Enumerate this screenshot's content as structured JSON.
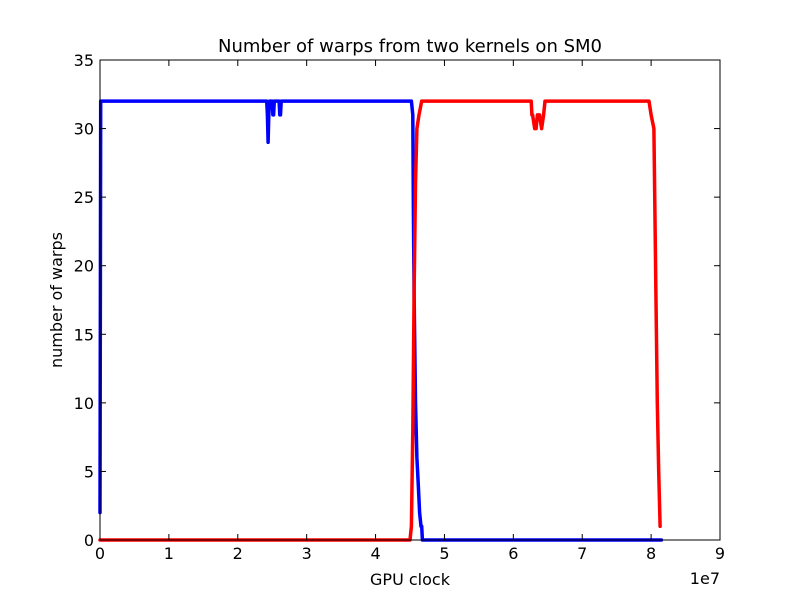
{
  "chart_data": {
    "type": "line",
    "title": "Number of warps from two kernels on SM0",
    "xlabel": "GPU clock",
    "ylabel": "number of warps",
    "x_offset_text": "1e7",
    "xlim": [
      0,
      90000000
    ],
    "ylim": [
      0,
      35
    ],
    "x_ticks": [
      0,
      10000000,
      20000000,
      30000000,
      40000000,
      50000000,
      60000000,
      70000000,
      80000000,
      90000000
    ],
    "x_tick_labels": [
      "0",
      "1",
      "2",
      "3",
      "4",
      "5",
      "6",
      "7",
      "8",
      "9"
    ],
    "y_ticks": [
      0,
      5,
      10,
      15,
      20,
      25,
      30,
      35
    ],
    "y_tick_labels": [
      "0",
      "5",
      "10",
      "15",
      "20",
      "25",
      "30",
      "35"
    ],
    "grid": false,
    "legend": "none",
    "series": [
      {
        "color": "#0000ff",
        "x": [
          0,
          100000,
          300000,
          24200000,
          24300000,
          24400000,
          24500000,
          24600000,
          24800000,
          25000000,
          25100000,
          25200000,
          25300000,
          25400000,
          26000000,
          26100000,
          26200000,
          26300000,
          26400000,
          45200000,
          45400000,
          45500000,
          45600000,
          45700000,
          45800000,
          46000000,
          46200000,
          46400000,
          46600000,
          46700000,
          46800000,
          47000000,
          81500000
        ],
        "y": [
          2,
          32,
          32,
          32,
          31,
          29,
          31,
          32,
          32,
          32,
          31,
          31,
          32,
          32,
          32,
          31,
          31,
          32,
          32,
          32,
          31,
          24,
          18,
          14,
          10,
          6,
          4,
          2,
          1,
          1,
          0,
          0,
          0
        ]
      },
      {
        "color": "#ff0000",
        "x": [
          0,
          45000000,
          45200000,
          45400000,
          45600000,
          45800000,
          46000000,
          46300000,
          46700000,
          47000000,
          62600000,
          62700000,
          62800000,
          63100000,
          63300000,
          63500000,
          63800000,
          64100000,
          64400000,
          64600000,
          79700000,
          80000000,
          80400000,
          80700000,
          80900000,
          81100000,
          81300000
        ],
        "y": [
          0,
          0,
          1,
          8,
          18,
          26,
          30,
          31,
          32,
          32,
          32,
          31,
          31,
          30,
          30,
          31,
          31,
          30,
          31,
          32,
          32,
          31,
          30,
          18,
          10,
          5,
          1
        ]
      }
    ]
  }
}
